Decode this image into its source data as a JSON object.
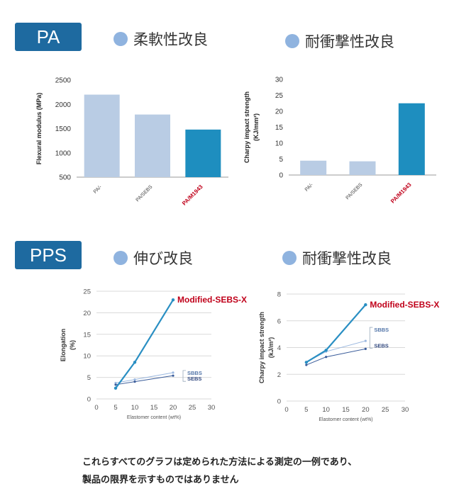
{
  "sections": [
    {
      "tag": "PA",
      "headings": [
        "柔軟性改良",
        "耐衝撃性改良"
      ]
    },
    {
      "tag": "PPS",
      "headings": [
        "伸び改良",
        "耐衝撃性改良"
      ]
    }
  ],
  "footnote": {
    "line1": "これらすべてのグラフは定められた方法による測定の一例であり、",
    "line2": "製品の限界を示すものではありません"
  },
  "colors": {
    "tag_bg": "#1e6aa0",
    "dot": "#8fb3df",
    "bar_light": "#b9cce4",
    "bar_dark": "#1e8ebf",
    "highlight_label": "#c0001a",
    "line_main": "#2a8fc3",
    "line_sbbs": "#9bb8e0",
    "line_sebs": "#3a5c9a"
  },
  "chart_data": [
    {
      "type": "bar",
      "ylabel": "Flexural modulus (MPa)",
      "ylim": [
        500,
        2500
      ],
      "yticks": [
        500,
        1000,
        1500,
        2000,
        2500
      ],
      "categories": [
        "PA/-",
        "PA/SEBS",
        "PA/M1943"
      ],
      "values": [
        2200,
        1790,
        1480
      ],
      "highlight": "PA/M1943"
    },
    {
      "type": "bar",
      "ylabel": "Charpy impact strength",
      "ylabel2": "(KJ/mm²)",
      "ylim": [
        0,
        30
      ],
      "yticks": [
        0,
        5,
        10,
        15,
        20,
        25,
        30
      ],
      "categories": [
        "PA/-",
        "PA/SEBS",
        "PA/M1943"
      ],
      "values": [
        4.5,
        4.3,
        22.5
      ],
      "highlight": "PA/M1943"
    },
    {
      "type": "line",
      "ylabel": "Elongation",
      "ylabel2": "(%)",
      "xlabel": "Elastomer content  (wt%)",
      "xlim": [
        0,
        30
      ],
      "ylim": [
        0,
        25
      ],
      "xticks": [
        0,
        5,
        10,
        15,
        20,
        25,
        30
      ],
      "yticks": [
        0,
        5,
        10,
        15,
        20,
        25
      ],
      "x": [
        5,
        10,
        20
      ],
      "series": [
        {
          "name": "Modified-SEBS-X",
          "values": [
            2.5,
            8.5,
            23
          ]
        },
        {
          "name": "SBBS",
          "values": [
            3.7,
            4.5,
            6.1
          ]
        },
        {
          "name": "SEBS",
          "values": [
            3.3,
            4.0,
            5.4
          ]
        }
      ]
    },
    {
      "type": "line",
      "ylabel": "Charpy impact strength",
      "ylabel2": "(kJ/m²)",
      "xlabel": "Elastomer content  (wt%)",
      "xlim": [
        0,
        30
      ],
      "ylim": [
        0,
        8
      ],
      "xticks": [
        0,
        5,
        10,
        15,
        20,
        25,
        30
      ],
      "yticks": [
        0,
        2,
        4,
        6,
        8
      ],
      "x": [
        5,
        10,
        20
      ],
      "series": [
        {
          "name": "Modified-SEBS-X",
          "values": [
            2.9,
            3.8,
            7.2
          ]
        },
        {
          "name": "SBBS",
          "values": [
            2.9,
            3.7,
            4.5
          ]
        },
        {
          "name": "SEBS",
          "values": [
            2.7,
            3.3,
            3.9
          ]
        }
      ]
    }
  ]
}
